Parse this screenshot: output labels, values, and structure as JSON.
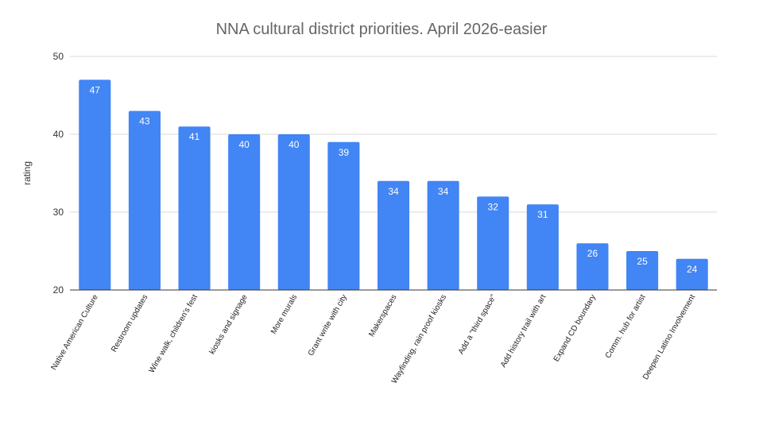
{
  "chart_data": {
    "type": "bar",
    "title": "NNA cultural district priorities. April 2026-easier",
    "xlabel": "",
    "ylabel": "rating",
    "ylim": [
      20,
      50
    ],
    "yticks": [
      20,
      30,
      40,
      50
    ],
    "grid": true,
    "legend": "none",
    "colors": {
      "bar": "#4285f4",
      "grid": "#d9d9d9",
      "axis": "#333333",
      "label": "#ffffff",
      "title": "#666666"
    },
    "categories": [
      "Native American Culture",
      "Restroom updates",
      "Wine walk, children's fest",
      "kiosks and signage",
      "More murals",
      "Grant write with city",
      "Makerspaces",
      "Wayfinding, rain proof kiosks",
      "Add a \"third space\"",
      "Add history trail with art",
      "Expand CD boundary",
      "Comm. hub for artist",
      "Deepen Latino Involvement"
    ],
    "values": [
      47,
      43,
      41,
      40,
      40,
      39,
      34,
      34,
      32,
      31,
      26,
      25,
      24
    ]
  }
}
